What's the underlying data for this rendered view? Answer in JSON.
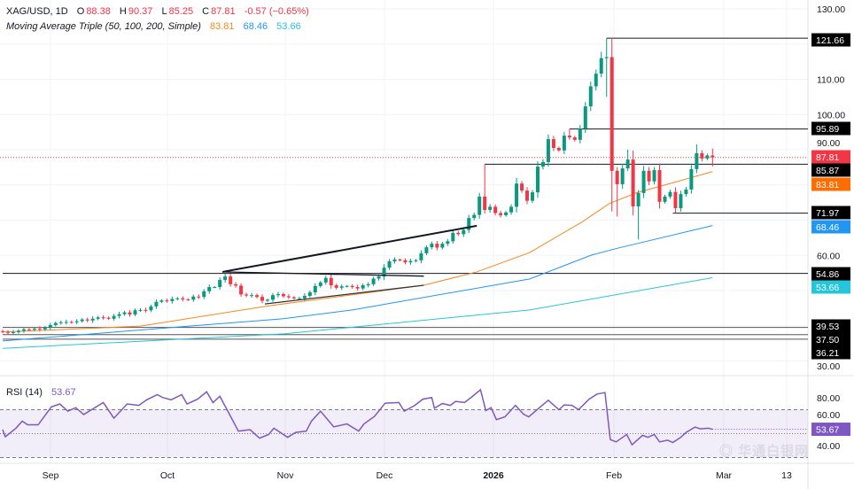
{
  "header": {
    "symbol": "XAG/USD, 1D",
    "open_label": "O",
    "open": "88.38",
    "high_label": "H",
    "high": "90.37",
    "low_label": "L",
    "low": "85.25",
    "close_label": "C",
    "close": "87.81",
    "change": "-0.57 (−0.65%)"
  },
  "indicator": {
    "name": "Moving Average Triple (50, 100, 200, Simple)",
    "ma50": "83.81",
    "ma100": "68.46",
    "ma200": "53.66"
  },
  "rsi_header": {
    "name": "RSI (14)",
    "value": "53.67"
  },
  "watermark": "华通白银网",
  "colors": {
    "up": "#089981",
    "down": "#f23645",
    "ma50": "#f7861d",
    "ma100": "#2196f3",
    "ma200": "#26c6da",
    "rsi": "#7e57c2",
    "last_price": "#f23645"
  },
  "chart_data": {
    "type": "candlestick",
    "title": "XAG/USD, 1D",
    "x_tick_labels": [
      "Sep",
      "Oct",
      "Nov",
      "Dec",
      "2026",
      "Feb",
      "Mar",
      "13"
    ],
    "y_tick_labels": [
      "130.00",
      "110.00",
      "100.00",
      "90.00",
      "60.00",
      "30.00"
    ],
    "ylim": [
      30,
      130
    ],
    "grid": true,
    "close": [
      38.3,
      38.0,
      38.2,
      38.6,
      39.0,
      38.9,
      39.2,
      39.0,
      39.5,
      40.2,
      40.8,
      41.0,
      41.1,
      41.0,
      41.3,
      41.8,
      41.5,
      42.0,
      42.4,
      42.3,
      42.0,
      42.8,
      43.3,
      43.8,
      43.2,
      44.4,
      44.5,
      44.4,
      45.5,
      46.8,
      47.2,
      47.0,
      47.6,
      47.8,
      47.5,
      47.4,
      48.3,
      48.2,
      49.8,
      51.0,
      51.0,
      53.0,
      54.0,
      51.8,
      51.4,
      48.9,
      48.6,
      48.7,
      48.2,
      47.1,
      47.4,
      48.7,
      49.0,
      48.4,
      48.1,
      47.8,
      47.8,
      48.5,
      49.5,
      51.3,
      52.3,
      53.6,
      51.5,
      50.8,
      51.2,
      51.3,
      51.0,
      50.6,
      51.5,
      51.8,
      53.4,
      54.0,
      56.5,
      58.3,
      58.8,
      58.6,
      58.0,
      58.4,
      58.6,
      60.6,
      62.3,
      63.3,
      62.2,
      63.3,
      64.0,
      66.4,
      66.0,
      67.2,
      70.6,
      71.5,
      76.7,
      72.9,
      73.8,
      72.0,
      71.4,
      72.2,
      73.8,
      80.4,
      78.4,
      75.5,
      77.9,
      85.2,
      86.5,
      93.0,
      90.5,
      89.8,
      94.0,
      93.5,
      92.8,
      96.0,
      102.3,
      108.0,
      111.6,
      116.0,
      116.3,
      84.0,
      80.2,
      84.7,
      87.2,
      73.9,
      77.7,
      84.0,
      81.0,
      84.2,
      75.2,
      76.7,
      78.0,
      73.4,
      77.4,
      78.7,
      84.5,
      89.0,
      87.5,
      88.38,
      87.81
    ],
    "overrides": {
      "42": {
        "h": 54.86
      },
      "91": {
        "h": 85.87
      },
      "107": {
        "h": 95.89
      },
      "113": {
        "h": 117.8
      },
      "114": {
        "h": 121.66,
        "l": 105.0
      },
      "115": {
        "l": 72.5
      },
      "116": {
        "l": 71.0
      },
      "118": {
        "h": 90.0
      },
      "120": {
        "l": 64.5
      },
      "127": {
        "l": 71.97
      },
      "131": {
        "h": 91.5
      },
      "134": {
        "o": 88.38,
        "h": 90.37,
        "l": 85.25
      }
    },
    "moving_averages": [
      {
        "name": "MA 50",
        "last": 83.81,
        "points": [
          [
            0,
            38.2
          ],
          [
            26,
            39.9
          ],
          [
            49.5,
            45.5
          ],
          [
            79.5,
            51.5
          ],
          [
            89.5,
            55.3
          ],
          [
            99.5,
            60.8
          ],
          [
            109.5,
            69.6
          ],
          [
            114.5,
            74.7
          ],
          [
            119.5,
            77.7
          ],
          [
            126,
            80.4
          ],
          [
            134,
            83.81
          ]
        ]
      },
      {
        "name": "MA 100",
        "last": 68.46,
        "points": [
          [
            0,
            35.7
          ],
          [
            53,
            42.0
          ],
          [
            66,
            44.5
          ],
          [
            99.5,
            53.3
          ],
          [
            111,
            60.0
          ],
          [
            116,
            62.0
          ],
          [
            134,
            68.46
          ]
        ]
      },
      {
        "name": "MA 200",
        "last": 53.66,
        "points": [
          [
            0,
            33.6
          ],
          [
            53,
            37.7
          ],
          [
            99.5,
            44.5
          ],
          [
            134,
            53.66
          ]
        ]
      }
    ],
    "levels": [
      {
        "value": 121.66,
        "label": "121.66",
        "from": 114
      },
      {
        "value": 95.89,
        "label": "95.89",
        "from": 107
      },
      {
        "value": 85.87,
        "label": "85.87",
        "from": 91
      },
      {
        "value": 71.97,
        "label": "71.97",
        "from": 126.5
      },
      {
        "value": 54.86,
        "label": "54.86",
        "from": 0
      },
      {
        "value": 39.53,
        "label": "39.53",
        "from": 0
      },
      {
        "value": 37.5,
        "label": "37.50",
        "from": 0
      },
      {
        "value": 36.21,
        "label": "36.21",
        "from": 0
      }
    ],
    "trendlines": [
      [
        [
          41.5,
          55.3
        ],
        [
          89.5,
          68.4
        ]
      ],
      [
        [
          41.5,
          55.3
        ],
        [
          79.5,
          54.1
        ]
      ],
      [
        [
          49.5,
          46.2
        ],
        [
          79.5,
          51.5
        ]
      ]
    ],
    "price_labels": [
      {
        "label": "87.81",
        "kind": "last"
      },
      {
        "label": "83.81",
        "kind": "ma50"
      },
      {
        "label": "68.46",
        "kind": "ma100"
      },
      {
        "label": "53.66",
        "kind": "ma200"
      }
    ],
    "rsi": {
      "period": 14,
      "last": 53.67,
      "ylim": [
        20,
        90
      ],
      "bands": [
        30,
        50,
        70
      ],
      "y_tick_labels": [
        "80.00",
        "60.00",
        "40.00"
      ],
      "points": [
        [
          0,
          53.3
        ],
        [
          0.5,
          47.4
        ],
        [
          2.5,
          54.5
        ],
        [
          3.7,
          60.5
        ],
        [
          4.7,
          57.4
        ],
        [
          6.7,
          57.4
        ],
        [
          9.2,
          72.4
        ],
        [
          10.8,
          74.8
        ],
        [
          12.3,
          68.8
        ],
        [
          13.8,
          71.7
        ],
        [
          15.3,
          66
        ],
        [
          19,
          76
        ],
        [
          21,
          62.9
        ],
        [
          23.5,
          74.8
        ],
        [
          25.7,
          73.6
        ],
        [
          27.2,
          78.3
        ],
        [
          29.2,
          82.6
        ],
        [
          30.2,
          80.2
        ],
        [
          31.8,
          78.3
        ],
        [
          33.8,
          82.6
        ],
        [
          34.8,
          74.8
        ],
        [
          36.8,
          78.8
        ],
        [
          38.5,
          85
        ],
        [
          39.7,
          76
        ],
        [
          41,
          81.2
        ],
        [
          42.5,
          68.8
        ],
        [
          44.5,
          52.1
        ],
        [
          46.7,
          53.3
        ],
        [
          48.5,
          46.2
        ],
        [
          50.2,
          49.3
        ],
        [
          51.2,
          54.5
        ],
        [
          53.8,
          46.9
        ],
        [
          55.3,
          51
        ],
        [
          57.3,
          52.1
        ],
        [
          58.3,
          60.5
        ],
        [
          60,
          68.8
        ],
        [
          62.5,
          55.7
        ],
        [
          65,
          58.1
        ],
        [
          67.2,
          52.1
        ],
        [
          68.2,
          58.1
        ],
        [
          70.2,
          64.5
        ],
        [
          72.2,
          75.5
        ],
        [
          74.8,
          76
        ],
        [
          75.8,
          68.8
        ],
        [
          77.8,
          73.6
        ],
        [
          79.3,
          78.8
        ],
        [
          81,
          80.2
        ],
        [
          81.5,
          71.2
        ],
        [
          83,
          75.2
        ],
        [
          84.5,
          73.6
        ],
        [
          85.5,
          76.9
        ],
        [
          87.2,
          76
        ],
        [
          88.7,
          81.2
        ],
        [
          90.2,
          86.7
        ],
        [
          91.2,
          69.3
        ],
        [
          92.2,
          71.7
        ],
        [
          93.2,
          61.7
        ],
        [
          94.8,
          64
        ],
        [
          96.8,
          73.6
        ],
        [
          98.3,
          66.4
        ],
        [
          99.3,
          64
        ],
        [
          101.5,
          72.4
        ],
        [
          103,
          77.9
        ],
        [
          105,
          70
        ],
        [
          106,
          74
        ],
        [
          107.5,
          73.6
        ],
        [
          108.7,
          70
        ],
        [
          110.7,
          78.8
        ],
        [
          112.2,
          83.1
        ],
        [
          113.7,
          84.3
        ],
        [
          114.7,
          45
        ],
        [
          115.8,
          43.1
        ],
        [
          117.8,
          49.3
        ],
        [
          118.8,
          40.7
        ],
        [
          120.8,
          48.6
        ],
        [
          121.8,
          46.9
        ],
        [
          123,
          49.3
        ],
        [
          124,
          43.1
        ],
        [
          125.5,
          44.5
        ],
        [
          126.5,
          42.6
        ],
        [
          128,
          46.9
        ],
        [
          129,
          51
        ],
        [
          130.7,
          55.5
        ],
        [
          131.7,
          54
        ],
        [
          133.2,
          54.5
        ],
        [
          134,
          53.67
        ]
      ]
    }
  }
}
